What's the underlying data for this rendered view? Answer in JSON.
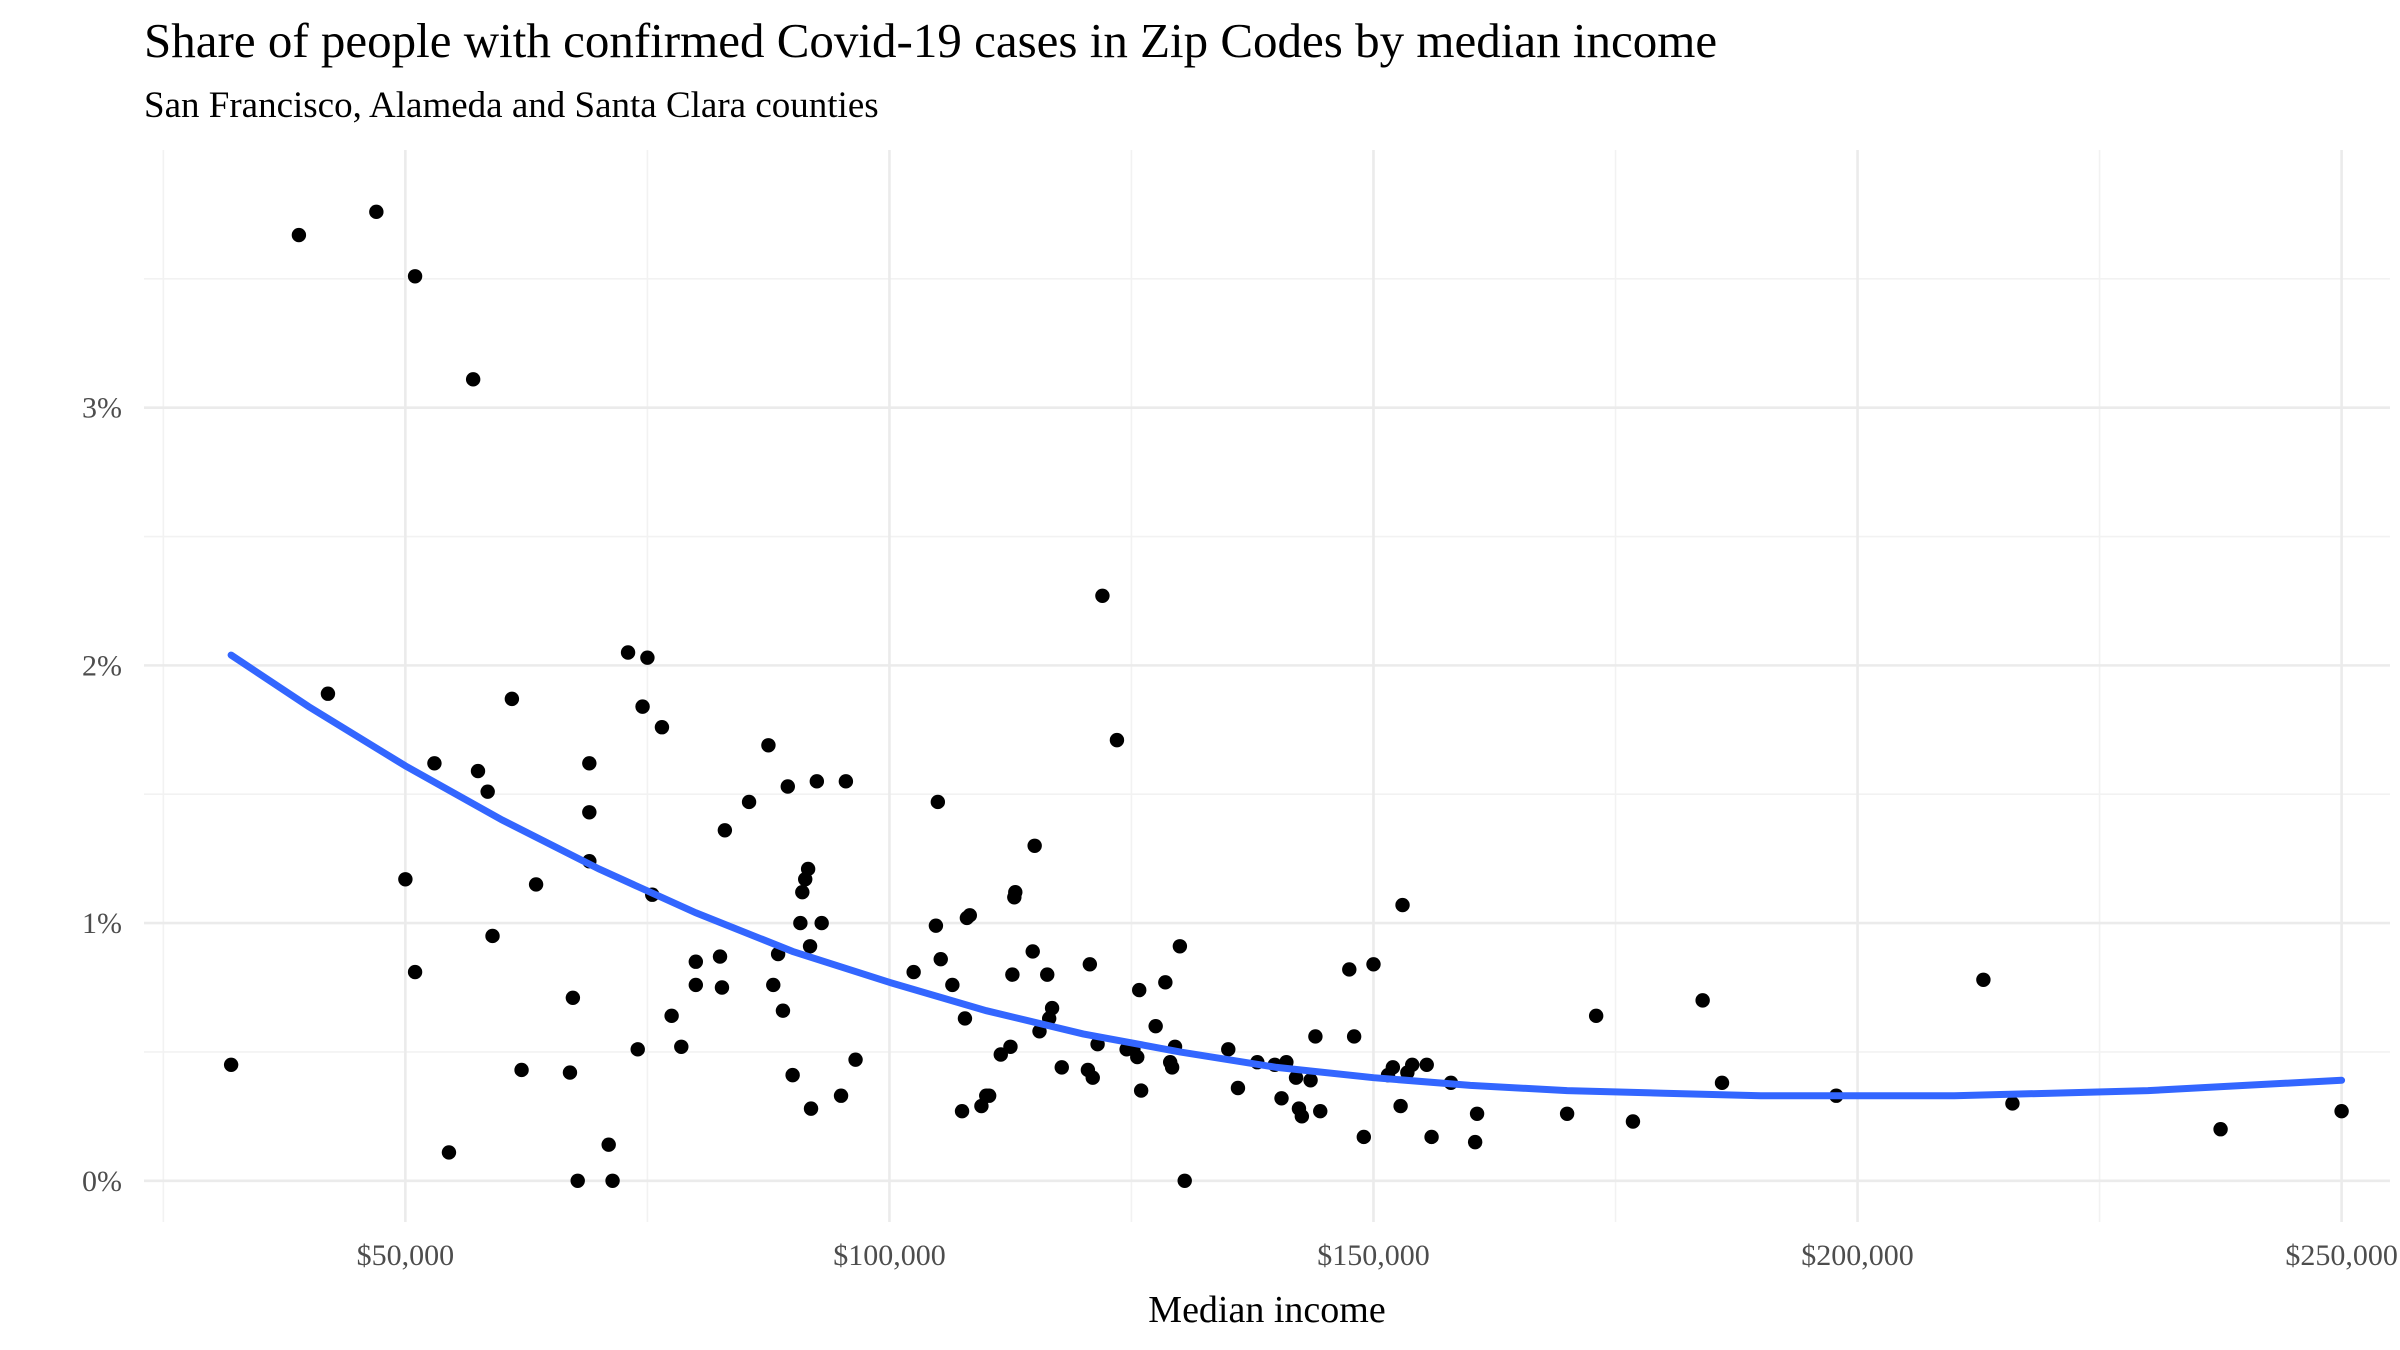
{
  "chart_data": {
    "type": "scatter",
    "title": "Share of people with confirmed Covid-19 cases in Zip Codes by median income",
    "subtitle": "San Francisco, Alameda and Santa Clara counties",
    "xlabel": "Median income",
    "ylabel": "",
    "xlim": [
      23000,
      255000
    ],
    "ylim": [
      -0.16,
      4.0
    ],
    "x_ticks": [
      50000,
      100000,
      150000,
      200000,
      250000
    ],
    "x_tick_labels": [
      "$50,000",
      "$100,000",
      "$150,000",
      "$200,000",
      "$250,000"
    ],
    "y_ticks": [
      0,
      1,
      2,
      3
    ],
    "y_tick_labels": [
      "0%",
      "1%",
      "2%",
      "3%"
    ],
    "grid": true,
    "legend": "none",
    "colors": {
      "points": "#000000",
      "trend": "#3366ff",
      "grid": "#ebebeb"
    },
    "series": [
      {
        "kind": "points",
        "points": [
          [
            32000,
            0.45
          ],
          [
            39000,
            3.67
          ],
          [
            42000,
            1.89
          ],
          [
            47000,
            3.76
          ],
          [
            50000,
            1.17
          ],
          [
            51000,
            3.51
          ],
          [
            51000,
            0.81
          ],
          [
            53000,
            1.62
          ],
          [
            54500,
            0.11
          ],
          [
            57000,
            3.11
          ],
          [
            57500,
            1.59
          ],
          [
            58500,
            1.51
          ],
          [
            59000,
            0.95
          ],
          [
            61000,
            1.87
          ],
          [
            62000,
            0.43
          ],
          [
            63500,
            1.15
          ],
          [
            67000,
            0.42
          ],
          [
            67300,
            0.71
          ],
          [
            67800,
            0.0
          ],
          [
            69000,
            1.62
          ],
          [
            69000,
            1.43
          ],
          [
            69000,
            1.24
          ],
          [
            71000,
            0.14
          ],
          [
            71400,
            0.0
          ],
          [
            73000,
            2.05
          ],
          [
            74000,
            0.51
          ],
          [
            74500,
            1.84
          ],
          [
            75000,
            2.03
          ],
          [
            75500,
            1.11
          ],
          [
            76500,
            1.76
          ],
          [
            77500,
            0.64
          ],
          [
            78500,
            0.52
          ],
          [
            80000,
            0.85
          ],
          [
            80000,
            0.76
          ],
          [
            82500,
            0.87
          ],
          [
            82700,
            0.75
          ],
          [
            83000,
            1.36
          ],
          [
            85500,
            1.47
          ],
          [
            87500,
            1.69
          ],
          [
            88000,
            0.76
          ],
          [
            88500,
            0.88
          ],
          [
            89000,
            0.66
          ],
          [
            89500,
            1.53
          ],
          [
            90000,
            0.41
          ],
          [
            90800,
            1.0
          ],
          [
            91000,
            1.12
          ],
          [
            91300,
            1.17
          ],
          [
            91600,
            1.21
          ],
          [
            91800,
            0.91
          ],
          [
            91900,
            0.28
          ],
          [
            92500,
            1.55
          ],
          [
            93000,
            1.0
          ],
          [
            95000,
            0.33
          ],
          [
            95500,
            1.55
          ],
          [
            96500,
            0.47
          ],
          [
            102500,
            0.81
          ],
          [
            104800,
            0.99
          ],
          [
            105000,
            1.47
          ],
          [
            105300,
            0.86
          ],
          [
            106500,
            0.76
          ],
          [
            107500,
            0.27
          ],
          [
            107800,
            0.63
          ],
          [
            108000,
            1.02
          ],
          [
            108300,
            1.03
          ],
          [
            109500,
            0.29
          ],
          [
            110000,
            0.33
          ],
          [
            110300,
            0.33
          ],
          [
            111500,
            0.49
          ],
          [
            112500,
            0.52
          ],
          [
            112700,
            0.8
          ],
          [
            112900,
            1.1
          ],
          [
            113000,
            1.12
          ],
          [
            114800,
            0.89
          ],
          [
            115000,
            1.3
          ],
          [
            115500,
            0.58
          ],
          [
            116300,
            0.8
          ],
          [
            116500,
            0.63
          ],
          [
            116800,
            0.67
          ],
          [
            117800,
            0.44
          ],
          [
            120500,
            0.43
          ],
          [
            120700,
            0.84
          ],
          [
            121000,
            0.4
          ],
          [
            121500,
            0.53
          ],
          [
            122000,
            2.27
          ],
          [
            123500,
            1.71
          ],
          [
            124500,
            0.51
          ],
          [
            125200,
            0.51
          ],
          [
            125600,
            0.48
          ],
          [
            125800,
            0.74
          ],
          [
            126000,
            0.35
          ],
          [
            127500,
            0.6
          ],
          [
            128500,
            0.77
          ],
          [
            129000,
            0.46
          ],
          [
            129200,
            0.44
          ],
          [
            129500,
            0.52
          ],
          [
            130000,
            0.91
          ],
          [
            130500,
            0.0
          ],
          [
            135000,
            0.51
          ],
          [
            136000,
            0.36
          ],
          [
            138000,
            0.46
          ],
          [
            139800,
            0.45
          ],
          [
            140500,
            0.32
          ],
          [
            141000,
            0.46
          ],
          [
            142000,
            0.4
          ],
          [
            142300,
            0.28
          ],
          [
            142600,
            0.25
          ],
          [
            143500,
            0.39
          ],
          [
            144000,
            0.56
          ],
          [
            144500,
            0.27
          ],
          [
            147500,
            0.82
          ],
          [
            148000,
            0.56
          ],
          [
            149000,
            0.17
          ],
          [
            150000,
            0.84
          ],
          [
            151500,
            0.41
          ],
          [
            152000,
            0.44
          ],
          [
            152800,
            0.29
          ],
          [
            153000,
            1.07
          ],
          [
            153500,
            0.42
          ],
          [
            154000,
            0.45
          ],
          [
            155500,
            0.45
          ],
          [
            156000,
            0.17
          ],
          [
            158000,
            0.38
          ],
          [
            160500,
            0.15
          ],
          [
            160700,
            0.26
          ],
          [
            170000,
            0.26
          ],
          [
            173000,
            0.64
          ],
          [
            176800,
            0.23
          ],
          [
            184000,
            0.7
          ],
          [
            186000,
            0.38
          ],
          [
            197800,
            0.33
          ],
          [
            213000,
            0.78
          ],
          [
            216000,
            0.3
          ],
          [
            237500,
            0.2
          ],
          [
            250000,
            0.27
          ]
        ]
      },
      {
        "kind": "smooth-trend",
        "points": [
          [
            32000,
            2.04
          ],
          [
            40000,
            1.84
          ],
          [
            50000,
            1.61
          ],
          [
            60000,
            1.4
          ],
          [
            70000,
            1.21
          ],
          [
            80000,
            1.04
          ],
          [
            90000,
            0.89
          ],
          [
            100000,
            0.77
          ],
          [
            110000,
            0.66
          ],
          [
            120000,
            0.57
          ],
          [
            130000,
            0.5
          ],
          [
            140000,
            0.44
          ],
          [
            150000,
            0.4
          ],
          [
            160000,
            0.37
          ],
          [
            170000,
            0.35
          ],
          [
            180000,
            0.34
          ],
          [
            190000,
            0.33
          ],
          [
            200000,
            0.33
          ],
          [
            210000,
            0.33
          ],
          [
            220000,
            0.34
          ],
          [
            230000,
            0.35
          ],
          [
            240000,
            0.37
          ],
          [
            250000,
            0.39
          ]
        ]
      }
    ]
  }
}
